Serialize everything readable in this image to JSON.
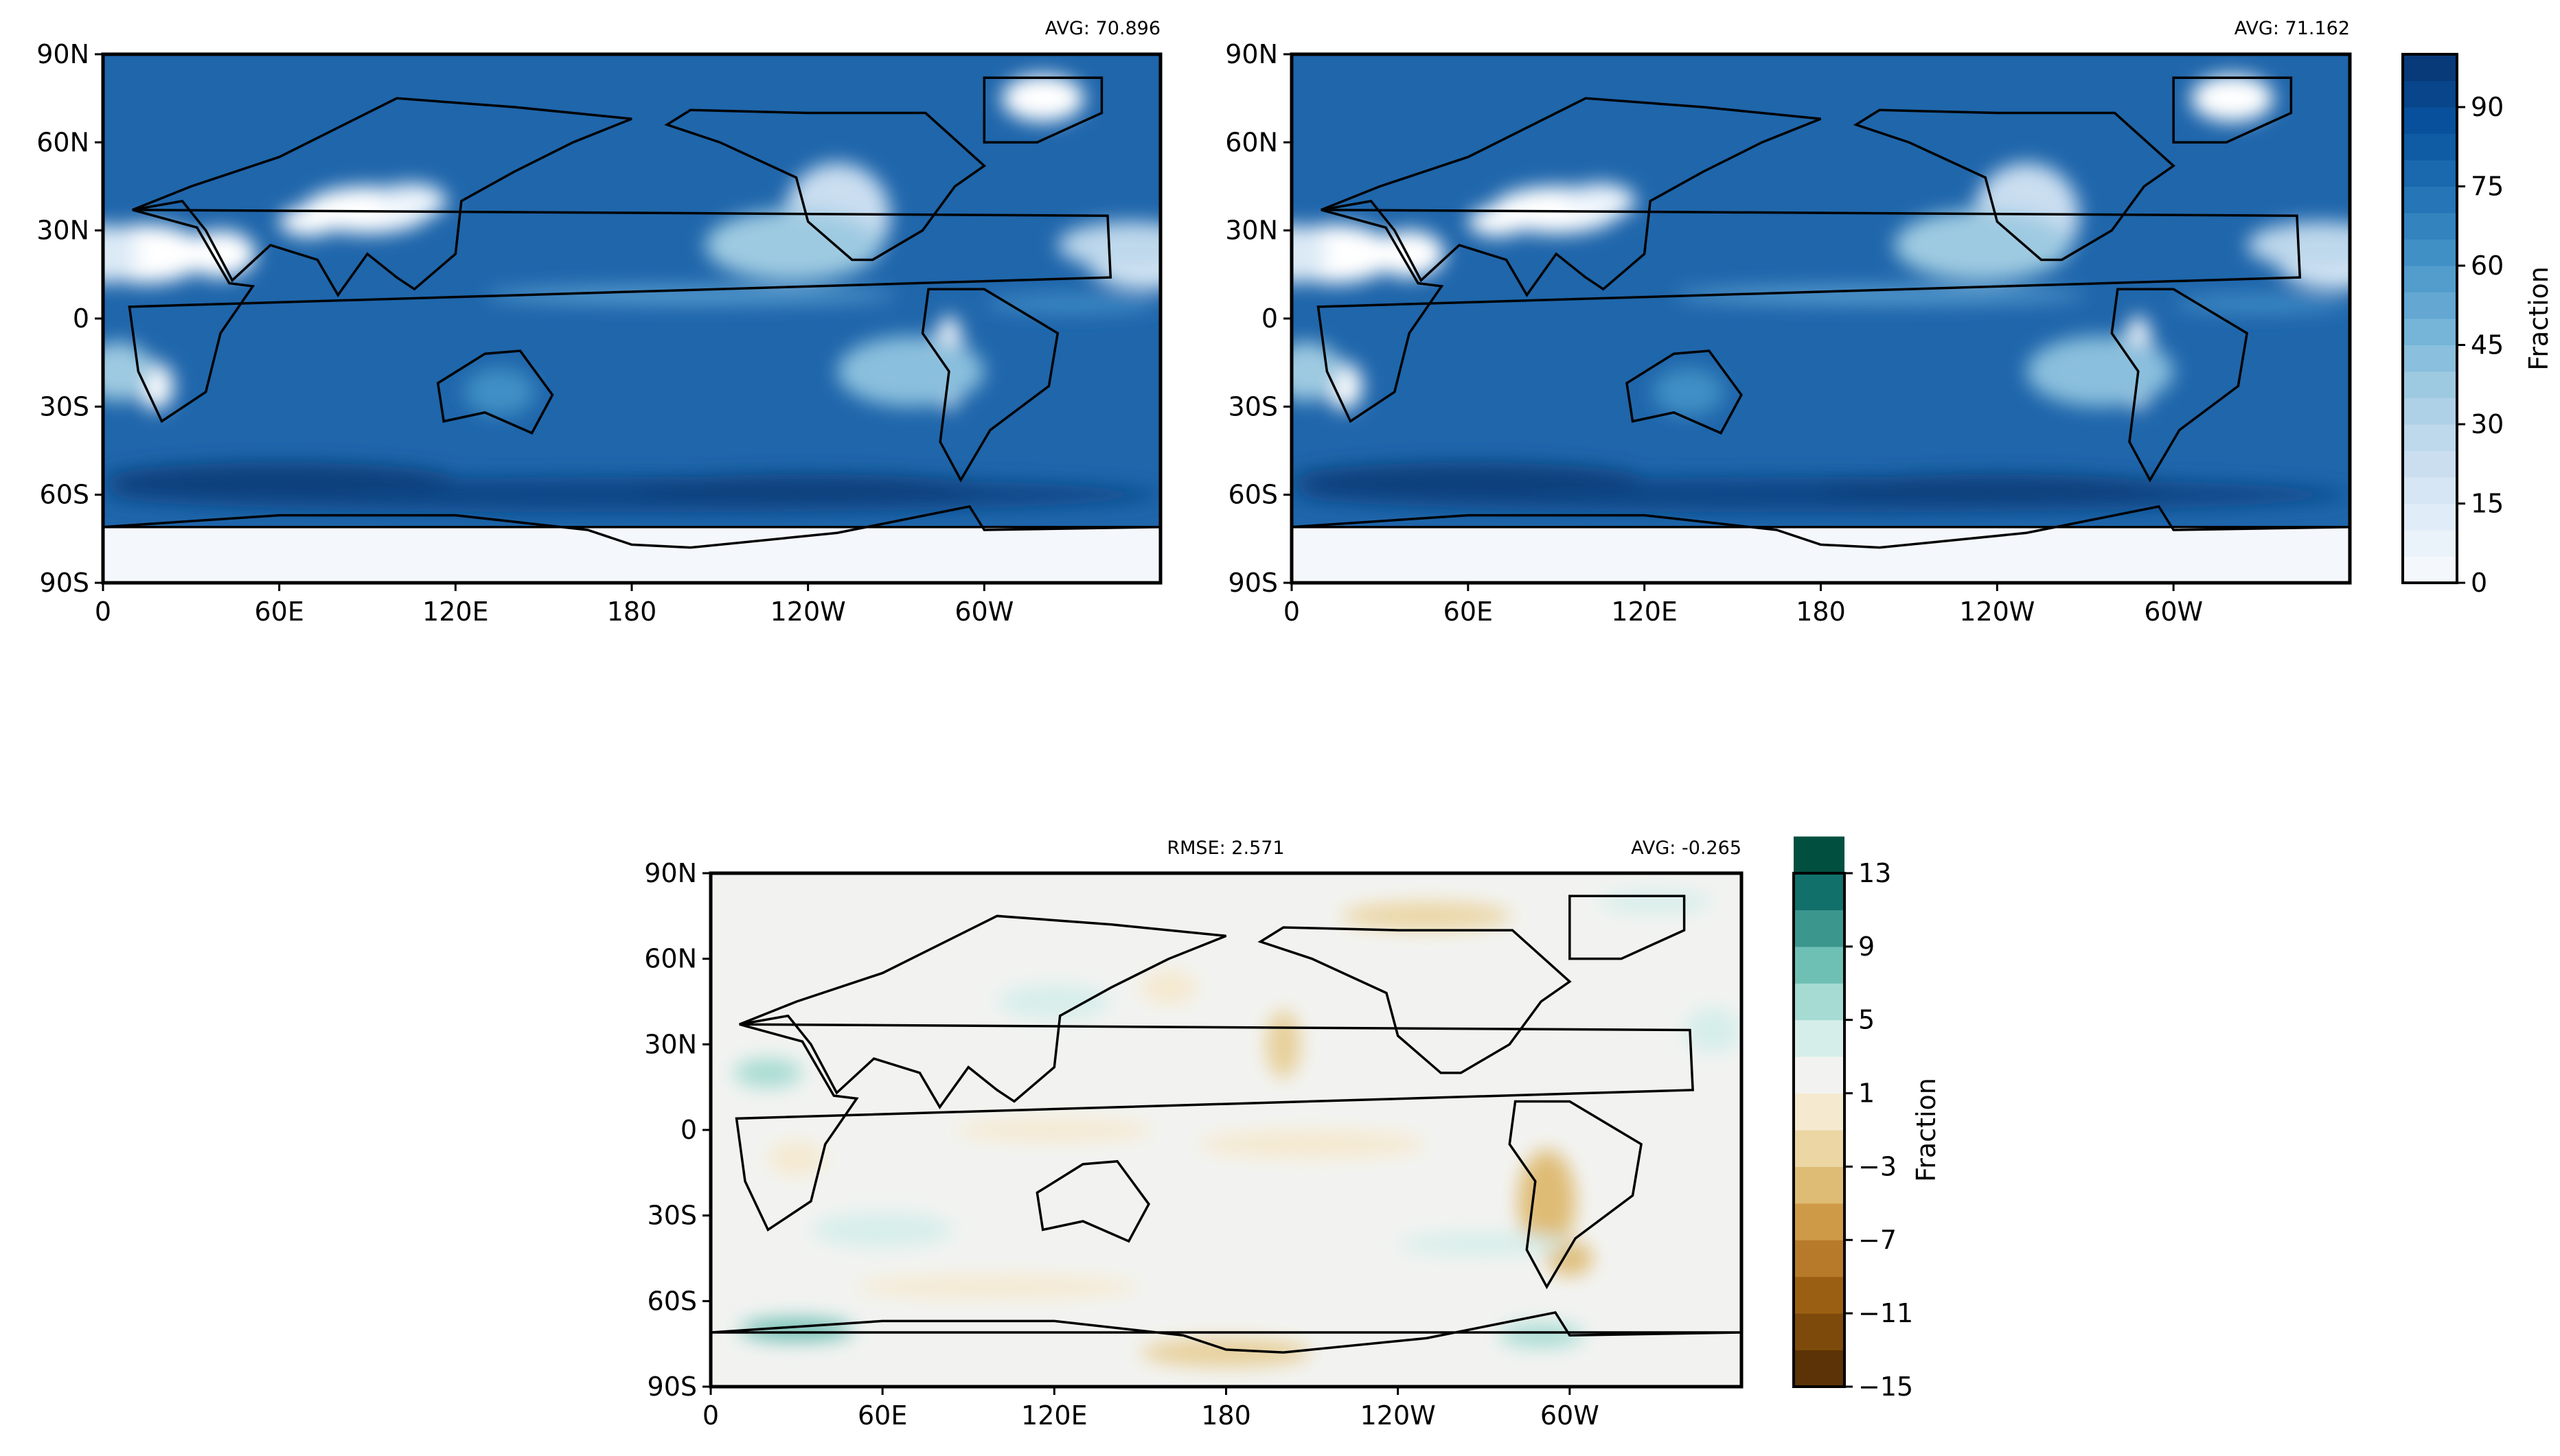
{
  "chart_data": [
    {
      "type": "heatmap",
      "panel": "top-left",
      "title_right": "AVG: 70.896",
      "colormap": "Blues",
      "xticks": [
        "0",
        "60E",
        "120E",
        "180",
        "120W",
        "60W"
      ],
      "yticks": [
        "90N",
        "60N",
        "30N",
        "0",
        "30S",
        "60S",
        "90S"
      ],
      "xlim": [
        0,
        360
      ],
      "ylim": [
        -90,
        90
      ]
    },
    {
      "type": "heatmap",
      "panel": "top-right",
      "title_right": "AVG: 71.162",
      "colormap": "Blues",
      "xticks": [
        "0",
        "60E",
        "120E",
        "180",
        "120W",
        "60W"
      ],
      "yticks": [
        "90N",
        "60N",
        "30N",
        "0",
        "30S",
        "60S",
        "90S"
      ],
      "xlim": [
        0,
        360
      ],
      "ylim": [
        -90,
        90
      ]
    },
    {
      "type": "heatmap",
      "panel": "bottom",
      "title_left": "RMSE: 2.571",
      "title_right": "AVG: -0.265",
      "colormap": "BrBG",
      "xticks": [
        "0",
        "60E",
        "120E",
        "180",
        "120W",
        "60W"
      ],
      "yticks": [
        "90N",
        "60N",
        "30N",
        "0",
        "30S",
        "60S",
        "90S"
      ],
      "xlim": [
        0,
        360
      ],
      "ylim": [
        -90,
        90
      ]
    }
  ],
  "colorbars": [
    {
      "label": "Fraction",
      "range": [
        0,
        100
      ],
      "step": 5,
      "ticks": [
        "0",
        "15",
        "30",
        "45",
        "60",
        "75",
        "90"
      ],
      "tick_values": [
        0,
        15,
        30,
        45,
        60,
        75,
        90
      ],
      "colors": [
        "#f4f8fd",
        "#eaf2fa",
        "#e0ecf7",
        "#d6e6f4",
        "#cadef0",
        "#bed8ec",
        "#afd1e7",
        "#9ecae1",
        "#8abfdd",
        "#76b4d8",
        "#63a7d2",
        "#529dcc",
        "#4190c5",
        "#3383be",
        "#2575b7",
        "#1a68ae",
        "#0f5ba4",
        "#08509b",
        "#08458a",
        "#083a79"
      ]
    },
    {
      "label": "Fraction",
      "range": [
        -15,
        13
      ],
      "step": 2,
      "ticks": [
        "−15",
        "−11",
        "−7",
        "−3",
        "1",
        "5",
        "9",
        "13"
      ],
      "tick_values": [
        -15,
        -11,
        -7,
        -3,
        1,
        5,
        9,
        13
      ],
      "colors": [
        "#5c3306",
        "#7d4a0b",
        "#9b5f13",
        "#b77a2a",
        "#cf9a48",
        "#dfbc75",
        "#ebd6a4",
        "#f5e9cf",
        "#f2f3f1",
        "#d6eeea",
        "#a5dbd2",
        "#6ebfb4",
        "#3b968e",
        "#11706a",
        "#01503f"
      ]
    }
  ]
}
